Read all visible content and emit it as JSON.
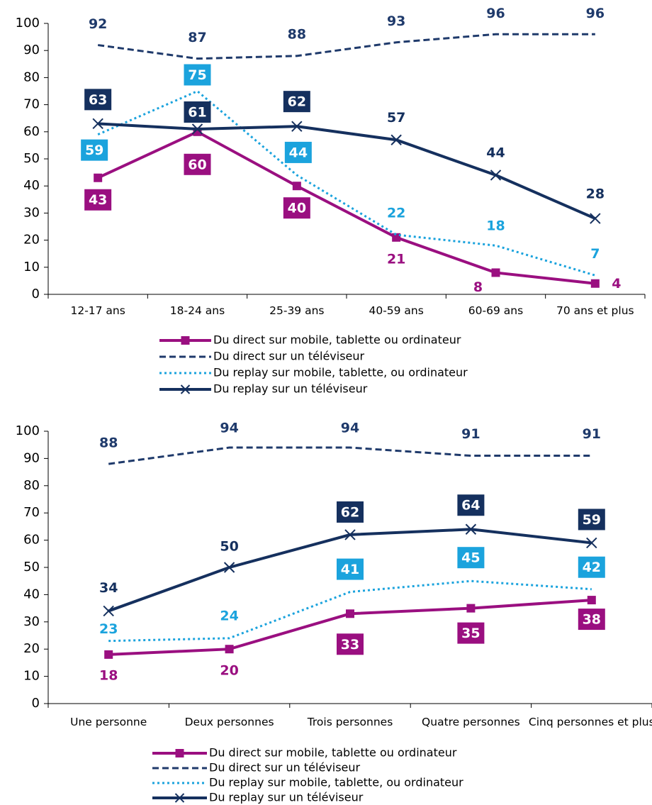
{
  "chart_data": [
    {
      "type": "line",
      "categories": [
        "12-17 ans",
        "18-24 ans",
        "25-39 ans",
        "40-59 ans",
        "60-69 ans",
        "70 ans et plus"
      ],
      "ylim": [
        0,
        100
      ],
      "yticks": [
        0,
        10,
        20,
        30,
        40,
        50,
        60,
        70,
        80,
        90,
        100
      ],
      "series": [
        {
          "name": "Du direct sur mobile, tablette ou ordinateur",
          "color": "#9a0f80",
          "line_style": "solid",
          "marker": "square",
          "values": [
            43,
            60,
            40,
            21,
            8,
            4
          ],
          "label_boxed": [
            true,
            true,
            true,
            false,
            false,
            false
          ]
        },
        {
          "name": "Du direct sur un téléviseur",
          "color": "#1f3a6b",
          "line_style": "dashed",
          "marker": "none",
          "values": [
            92,
            87,
            88,
            93,
            96,
            96
          ],
          "label_boxed": [
            false,
            false,
            false,
            false,
            false,
            false
          ]
        },
        {
          "name": "Du replay sur mobile, tablette, ou ordinateur",
          "color": "#1ba3dd",
          "line_style": "dotted",
          "marker": "none",
          "values": [
            59,
            75,
            44,
            22,
            18,
            7
          ],
          "label_boxed": [
            true,
            true,
            true,
            false,
            false,
            false
          ]
        },
        {
          "name": "Du replay sur un téléviseur",
          "color": "#15305e",
          "line_style": "solid",
          "marker": "x",
          "values": [
            63,
            61,
            62,
            57,
            44,
            28
          ],
          "label_boxed": [
            true,
            true,
            true,
            false,
            false,
            false
          ]
        }
      ]
    },
    {
      "type": "line",
      "categories": [
        "Une personne",
        "Deux personnes",
        "Trois personnes",
        "Quatre personnes",
        "Cinq personnes et plus"
      ],
      "ylim": [
        0,
        100
      ],
      "yticks": [
        0,
        10,
        20,
        30,
        40,
        50,
        60,
        70,
        80,
        90,
        100
      ],
      "series": [
        {
          "name": "Du direct sur mobile, tablette ou ordinateur",
          "color": "#9a0f80",
          "line_style": "solid",
          "marker": "square",
          "values": [
            18,
            20,
            33,
            35,
            38
          ],
          "label_boxed": [
            false,
            false,
            true,
            true,
            true
          ]
        },
        {
          "name": "Du direct sur un téléviseur",
          "color": "#1f3a6b",
          "line_style": "dashed",
          "marker": "none",
          "values": [
            88,
            94,
            94,
            91,
            91
          ],
          "label_boxed": [
            false,
            false,
            false,
            false,
            false
          ]
        },
        {
          "name": "Du replay sur mobile, tablette, ou ordinateur",
          "color": "#1ba3dd",
          "line_style": "dotted",
          "marker": "none",
          "values": [
            23,
            24,
            41,
            45,
            42
          ],
          "label_boxed": [
            false,
            false,
            true,
            true,
            true
          ]
        },
        {
          "name": "Du replay sur un téléviseur",
          "color": "#15305e",
          "line_style": "solid",
          "marker": "x",
          "values": [
            34,
            50,
            62,
            64,
            59
          ],
          "label_boxed": [
            false,
            false,
            true,
            true,
            true
          ]
        }
      ]
    }
  ]
}
